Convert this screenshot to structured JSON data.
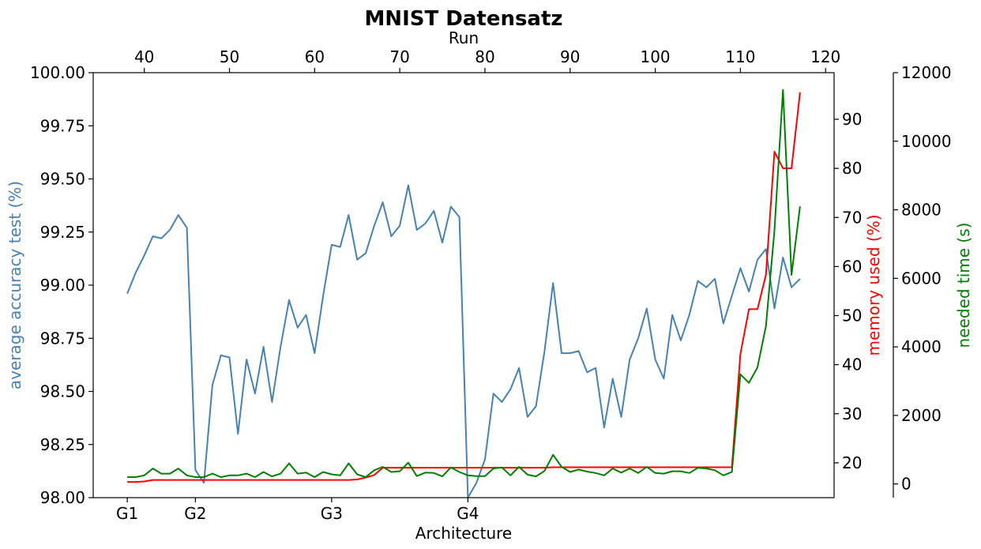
{
  "chart_data": {
    "type": "line",
    "title": "MNIST Datensatz",
    "top_xlabel": "Run",
    "bottom_xlabel": "Architecture",
    "xlim": [
      34,
      121
    ],
    "x_ticks": [
      "40",
      "50",
      "60",
      "70",
      "80",
      "90",
      "100",
      "110",
      "120"
    ],
    "architecture_ticks": [
      {
        "label": "G1",
        "x": 38
      },
      {
        "label": "G2",
        "x": 46
      },
      {
        "label": "G3",
        "x": 62
      },
      {
        "label": "G4",
        "x": 78
      }
    ],
    "grid": false,
    "axes": {
      "accuracy": {
        "ylabel": "average accuracy test (%)",
        "ylim": [
          98.0,
          100.0
        ],
        "color": "#4682b4",
        "ticks": [
          "98.00",
          "98.25",
          "98.50",
          "98.75",
          "99.00",
          "99.25",
          "99.50",
          "99.75",
          "100.00"
        ]
      },
      "memory": {
        "ylabel": "memory used (%)",
        "ylim": [
          12.9,
          99.5
        ],
        "color": "#ff0000",
        "ticks": [
          "20",
          "30",
          "40",
          "50",
          "60",
          "70",
          "80",
          "90"
        ]
      },
      "time": {
        "ylabel": "needed time (s)",
        "ylim": [
          -400,
          12000
        ],
        "color": "#008000",
        "ticks": [
          "0",
          "2000",
          "4000",
          "6000",
          "8000",
          "10000",
          "12000"
        ]
      }
    },
    "x": [
      38,
      39,
      40,
      41,
      42,
      43,
      44,
      45,
      46,
      47,
      48,
      49,
      50,
      51,
      52,
      53,
      54,
      55,
      56,
      57,
      58,
      59,
      60,
      61,
      62,
      63,
      64,
      65,
      66,
      67,
      68,
      69,
      70,
      71,
      72,
      73,
      74,
      75,
      76,
      77,
      78,
      79,
      80,
      81,
      82,
      83,
      84,
      85,
      86,
      87,
      88,
      89,
      90,
      91,
      92,
      93,
      94,
      95,
      96,
      97,
      98,
      99,
      100,
      101,
      102,
      103,
      104,
      105,
      106,
      107,
      108,
      109,
      110,
      111,
      112,
      113,
      114,
      115,
      116,
      117
    ],
    "series": [
      {
        "name": "average accuracy test (%)",
        "axis": "accuracy",
        "color": "#4682b4",
        "values": [
          98.96,
          99.06,
          99.14,
          99.23,
          99.22,
          99.26,
          99.33,
          99.27,
          98.13,
          98.07,
          98.53,
          98.67,
          98.66,
          98.3,
          98.65,
          98.49,
          98.71,
          98.45,
          98.71,
          98.93,
          98.8,
          98.86,
          98.68,
          98.95,
          99.19,
          99.18,
          99.33,
          99.12,
          99.15,
          99.28,
          99.39,
          99.23,
          99.28,
          99.47,
          99.26,
          99.29,
          99.35,
          99.2,
          99.37,
          99.32,
          98.0,
          98.07,
          98.18,
          98.49,
          98.45,
          98.51,
          98.61,
          98.38,
          98.43,
          98.69,
          99.01,
          98.68,
          98.68,
          98.69,
          98.59,
          98.61,
          98.33,
          98.56,
          98.38,
          98.65,
          98.75,
          98.89,
          98.65,
          98.56,
          98.86,
          98.74,
          98.86,
          99.02,
          98.99,
          99.03,
          98.82,
          98.95,
          99.08,
          98.97,
          99.12,
          99.17,
          98.89,
          99.13,
          98.99,
          99.03
        ]
      },
      {
        "name": "memory used (%)",
        "axis": "memory",
        "color": "#ff0000",
        "values": [
          16.1,
          16.1,
          16.2,
          16.5,
          16.5,
          16.5,
          16.5,
          16.5,
          16.5,
          16.5,
          16.5,
          16.5,
          16.5,
          16.5,
          16.5,
          16.5,
          16.5,
          16.5,
          16.5,
          16.5,
          16.5,
          16.5,
          16.5,
          16.5,
          16.5,
          16.5,
          16.5,
          16.6,
          17.0,
          17.5,
          19.0,
          19.0,
          19.0,
          19.0,
          19.0,
          19.0,
          19.0,
          19.0,
          19.0,
          19.0,
          19.0,
          19.0,
          19.0,
          19.0,
          19.0,
          19.0,
          19.0,
          19.0,
          19.0,
          19.0,
          19.1,
          19.1,
          19.1,
          19.1,
          19.1,
          19.1,
          19.1,
          19.1,
          19.1,
          19.1,
          19.1,
          19.1,
          19.1,
          19.1,
          19.1,
          19.1,
          19.1,
          19.1,
          19.1,
          19.1,
          19.1,
          19.1,
          42.2,
          51.3,
          51.3,
          58.3,
          83.4,
          80.0,
          80.0,
          95.5
        ]
      },
      {
        "name": "needed time (s)",
        "axis": "time",
        "color": "#008000",
        "values": [
          200,
          200,
          250,
          450,
          300,
          300,
          450,
          250,
          200,
          200,
          300,
          200,
          250,
          250,
          300,
          200,
          350,
          220,
          300,
          600,
          300,
          330,
          200,
          350,
          280,
          250,
          600,
          280,
          200,
          400,
          500,
          350,
          370,
          620,
          230,
          330,
          320,
          220,
          480,
          350,
          250,
          230,
          230,
          450,
          480,
          250,
          500,
          270,
          220,
          380,
          850,
          500,
          350,
          420,
          360,
          320,
          250,
          450,
          330,
          450,
          320,
          500,
          320,
          300,
          370,
          370,
          320,
          470,
          450,
          400,
          250,
          350,
          3200,
          2950,
          3400,
          4600,
          7400,
          11500,
          6100,
          8100
        ]
      }
    ]
  }
}
